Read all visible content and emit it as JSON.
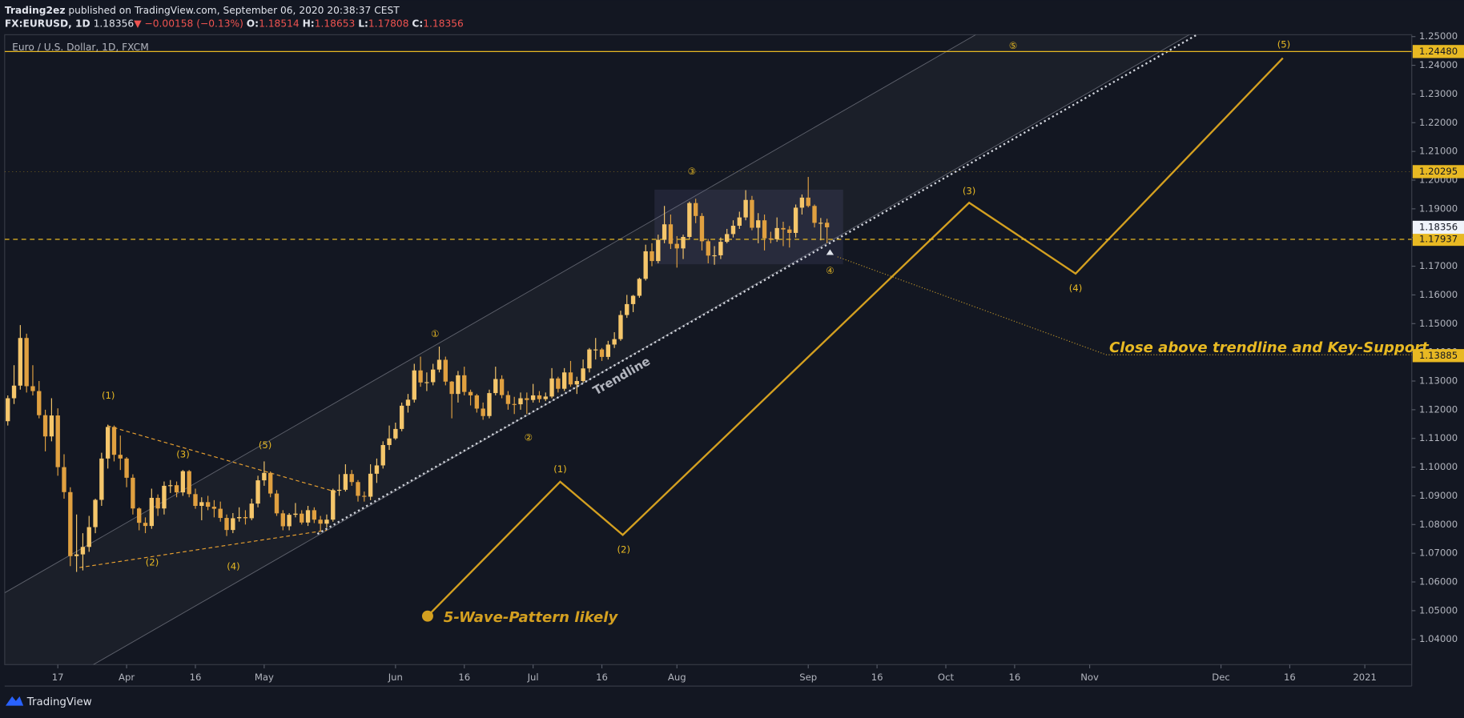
{
  "header": {
    "publisher": "Trading2ez",
    "published": "published on TradingView.com, September 06, 2020 20:38:37 CEST",
    "symbol": "FX:EURUSD, 1D",
    "change": "▼ −0.00158 (−0.13%)",
    "open_label": "O:",
    "high_label": "H:",
    "low_label": "L:",
    "close_label": "C:"
  },
  "pane_title": "Euro / U.S. Dollar, 1D, FXCM",
  "annotations": {
    "trendline": "Trendline",
    "note": "Close above trendline and Key-Support",
    "pattern": "5-Wave-Pattern likely",
    "waves": [
      "(1)",
      "(2)",
      "(3)",
      "(4)",
      "(5)",
      "①",
      "②",
      "③",
      "④",
      "⑤",
      "(1)",
      "(2)",
      "(3)",
      "(4)",
      "(5)"
    ]
  },
  "footer": "TradingView",
  "chart_data": {
    "type": "candlestick",
    "up_color": "#f5c66b",
    "down_color": "#e0a040",
    "open": [
      1.116,
      1.124,
      1.1284,
      1.145,
      1.1282,
      1.1265,
      1.1181,
      1.1107,
      1.118,
      1.1,
      1.0913,
      1.069,
      1.0696,
      1.0722,
      1.0791,
      1.0886,
      1.103,
      1.114,
      1.1043,
      1.103,
      1.0963,
      1.0856,
      1.0806,
      1.0795,
      1.0893,
      1.0856,
      1.0935,
      1.0937,
      1.0912,
      1.0986,
      1.0906,
      1.0865,
      1.0878,
      1.0862,
      1.0855,
      1.0823,
      1.0781,
      1.0822,
      1.0826,
      1.0822,
      1.0873,
      1.0954,
      1.098,
      1.0908,
      1.0839,
      1.0794,
      1.0834,
      1.0838,
      1.0807,
      1.085,
      1.0817,
      1.0803,
      1.0817,
      1.092,
      1.0921,
      1.0976,
      1.0948,
      1.09,
      1.0897,
      1.0977,
      1.1006,
      1.1077,
      1.11,
      1.1133,
      1.1214,
      1.1235,
      1.1337,
      1.1295,
      1.1296,
      1.134,
      1.1374,
      1.1298,
      1.1255,
      1.132,
      1.1262,
      1.125,
      1.1204,
      1.1178,
      1.1258,
      1.1307,
      1.1251,
      1.122,
      1.1219,
      1.124,
      1.1234,
      1.125,
      1.1237,
      1.1246,
      1.1309,
      1.1273,
      1.133,
      1.1288,
      1.13,
      1.1344,
      1.141,
      1.141,
      1.1384,
      1.1427,
      1.1446,
      1.153,
      1.1568,
      1.1597,
      1.1656,
      1.1752,
      1.1718,
      1.1792,
      1.1846,
      1.1778,
      1.1762,
      1.1802,
      1.192,
      1.1875,
      1.1787,
      1.1737,
      1.1738,
      1.1785,
      1.1812,
      1.1841,
      1.187,
      1.1931,
      1.1834,
      1.186,
      1.1797,
      1.1794,
      1.1833,
      1.1828,
      1.1816,
      1.1904,
      1.1939,
      1.191,
      1.1851,
      1.18514
    ],
    "high": [
      1.125,
      1.1355,
      1.1495,
      1.1465,
      1.1355,
      1.13,
      1.12,
      1.124,
      1.1205,
      1.1045,
      1.093,
      1.0835,
      1.077,
      1.083,
      1.089,
      1.105,
      1.1148,
      1.1145,
      1.111,
      1.1035,
      1.0975,
      1.086,
      1.0825,
      1.0925,
      1.0905,
      1.095,
      1.0955,
      1.095,
      1.099,
      1.099,
      1.0925,
      1.0895,
      1.09,
      1.0885,
      1.088,
      1.0835,
      1.084,
      1.086,
      1.085,
      1.089,
      1.097,
      1.102,
      1.0985,
      1.092,
      1.085,
      1.084,
      1.0875,
      1.085,
      1.0865,
      1.086,
      1.083,
      1.0835,
      1.0925,
      1.0975,
      1.101,
      1.099,
      1.0955,
      1.0915,
      1.101,
      1.103,
      1.109,
      1.1145,
      1.1155,
      1.1225,
      1.1255,
      1.136,
      1.1385,
      1.133,
      1.136,
      1.142,
      1.1385,
      1.13,
      1.1335,
      1.135,
      1.127,
      1.1255,
      1.1225,
      1.127,
      1.135,
      1.132,
      1.1265,
      1.1245,
      1.126,
      1.126,
      1.129,
      1.1265,
      1.126,
      1.1345,
      1.1315,
      1.1345,
      1.137,
      1.1315,
      1.1375,
      1.1415,
      1.145,
      1.1415,
      1.144,
      1.147,
      1.1545,
      1.16,
      1.16,
      1.166,
      1.1775,
      1.178,
      1.181,
      1.191,
      1.188,
      1.1805,
      1.181,
      1.1925,
      1.1935,
      1.1885,
      1.1795,
      1.177,
      1.18,
      1.183,
      1.186,
      1.189,
      1.1965,
      1.1945,
      1.1885,
      1.188,
      1.182,
      1.187,
      1.1855,
      1.184,
      1.1915,
      1.195,
      1.2011,
      1.1915,
      1.1868,
      1.18653
    ],
    "low": [
      1.1145,
      1.122,
      1.127,
      1.126,
      1.125,
      1.117,
      1.1055,
      1.109,
      1.097,
      1.089,
      1.0655,
      1.0635,
      1.064,
      1.0705,
      1.077,
      1.0865,
      1.0995,
      1.102,
      1.099,
      1.093,
      1.0835,
      1.078,
      1.077,
      1.0785,
      1.083,
      1.0835,
      1.091,
      1.0895,
      1.09,
      1.0895,
      1.0855,
      1.0815,
      1.085,
      1.0825,
      1.081,
      1.076,
      1.077,
      1.081,
      1.08,
      1.0815,
      1.086,
      1.0935,
      1.0895,
      1.083,
      1.078,
      1.078,
      1.0825,
      1.08,
      1.0795,
      1.0805,
      1.0775,
      1.079,
      1.081,
      1.09,
      1.0915,
      1.0935,
      1.088,
      1.088,
      1.0885,
      1.0945,
      1.0995,
      1.106,
      1.1095,
      1.1125,
      1.119,
      1.1225,
      1.128,
      1.1265,
      1.1285,
      1.133,
      1.1285,
      1.117,
      1.1225,
      1.125,
      1.1215,
      1.119,
      1.1165,
      1.117,
      1.125,
      1.124,
      1.12,
      1.1185,
      1.12,
      1.1185,
      1.1225,
      1.1225,
      1.123,
      1.124,
      1.126,
      1.1265,
      1.128,
      1.1255,
      1.1295,
      1.133,
      1.1375,
      1.137,
      1.1375,
      1.1415,
      1.144,
      1.152,
      1.154,
      1.159,
      1.165,
      1.17,
      1.171,
      1.178,
      1.176,
      1.1695,
      1.1725,
      1.1795,
      1.185,
      1.1755,
      1.171,
      1.1705,
      1.1725,
      1.178,
      1.18,
      1.183,
      1.186,
      1.1825,
      1.178,
      1.1755,
      1.178,
      1.1785,
      1.177,
      1.1765,
      1.18,
      1.188,
      1.1905,
      1.1835,
      1.179,
      1.17808
    ],
    "close": [
      1.124,
      1.1284,
      1.145,
      1.1282,
      1.1265,
      1.1181,
      1.1107,
      1.118,
      1.1,
      1.0913,
      1.069,
      1.0696,
      1.0722,
      1.0791,
      1.0886,
      1.103,
      1.114,
      1.1043,
      1.103,
      1.0963,
      1.0856,
      1.0806,
      1.0795,
      1.0893,
      1.0856,
      1.0935,
      1.0937,
      1.0912,
      1.0986,
      1.0906,
      1.0865,
      1.0878,
      1.0862,
      1.0855,
      1.0823,
      1.0781,
      1.0822,
      1.0826,
      1.0822,
      1.0873,
      1.0954,
      1.098,
      1.0908,
      1.0839,
      1.0794,
      1.0834,
      1.0838,
      1.0807,
      1.085,
      1.0817,
      1.0803,
      1.0817,
      1.092,
      1.0921,
      1.0976,
      1.0948,
      1.09,
      1.0897,
      1.0977,
      1.1006,
      1.1077,
      1.11,
      1.1133,
      1.1214,
      1.1235,
      1.1337,
      1.1295,
      1.1296,
      1.134,
      1.1374,
      1.1298,
      1.1255,
      1.132,
      1.1262,
      1.125,
      1.1204,
      1.1178,
      1.1258,
      1.1307,
      1.1251,
      1.122,
      1.1219,
      1.124,
      1.1234,
      1.125,
      1.1237,
      1.1246,
      1.1309,
      1.1273,
      1.133,
      1.1288,
      1.13,
      1.1344,
      1.141,
      1.141,
      1.1384,
      1.1427,
      1.1446,
      1.153,
      1.1568,
      1.1597,
      1.1656,
      1.1752,
      1.1718,
      1.1792,
      1.1846,
      1.1778,
      1.1762,
      1.1802,
      1.192,
      1.1875,
      1.1787,
      1.1737,
      1.1738,
      1.1785,
      1.1812,
      1.1841,
      1.187,
      1.1931,
      1.1834,
      1.186,
      1.1797,
      1.1794,
      1.1833,
      1.1828,
      1.1816,
      1.1904,
      1.1939,
      1.191,
      1.1851,
      1.18514,
      1.18356
    ],
    "xlim": [
      -0.5,
      224.5
    ],
    "xticks": [
      {
        "value": 8,
        "label": "17"
      },
      {
        "value": 19,
        "label": "Apr"
      },
      {
        "value": 30,
        "label": "16"
      },
      {
        "value": 41,
        "label": "May"
      },
      {
        "value": 62,
        "label": "Jun"
      },
      {
        "value": 73,
        "label": "16"
      },
      {
        "value": 84,
        "label": "Jul"
      },
      {
        "value": 95,
        "label": "16"
      },
      {
        "value": 107,
        "label": "Aug"
      },
      {
        "value": 128,
        "label": "Sep"
      },
      {
        "value": 139,
        "label": "16"
      },
      {
        "value": 150,
        "label": "Oct"
      },
      {
        "value": 161,
        "label": "16"
      },
      {
        "value": 173,
        "label": "Nov"
      },
      {
        "value": 194,
        "label": "Dec"
      },
      {
        "value": 205,
        "label": "16"
      },
      {
        "value": 217,
        "label": "2021"
      }
    ],
    "ylim": [
      1.0312,
      1.25
    ],
    "yticks": [
      {
        "value": 1.04,
        "label": "1.04000"
      },
      {
        "value": 1.05,
        "label": "1.05000"
      },
      {
        "value": 1.06,
        "label": "1.06000"
      },
      {
        "value": 1.07,
        "label": "1.07000"
      },
      {
        "value": 1.08,
        "label": "1.08000"
      },
      {
        "value": 1.09,
        "label": "1.09000"
      },
      {
        "value": 1.1,
        "label": "1.10000"
      },
      {
        "value": 1.11,
        "label": "1.11000"
      },
      {
        "value": 1.12,
        "label": "1.12000"
      },
      {
        "value": 1.13,
        "label": "1.13000"
      },
      {
        "value": 1.14,
        "label": "1.14000"
      },
      {
        "value": 1.15,
        "label": "1.15000"
      },
      {
        "value": 1.16,
        "label": "1.16000"
      },
      {
        "value": 1.17,
        "label": "1.17000"
      },
      {
        "value": 1.18,
        "label": "1.18000"
      },
      {
        "value": 1.19,
        "label": "1.19000"
      },
      {
        "value": 1.2,
        "label": "1.20000"
      },
      {
        "value": 1.21,
        "label": "1.21000"
      },
      {
        "value": 1.22,
        "label": "1.22000"
      },
      {
        "value": 1.23,
        "label": "1.23000"
      },
      {
        "value": 1.24,
        "label": "1.24000"
      },
      {
        "value": 1.25,
        "label": "1.25000"
      }
    ],
    "levels": [
      {
        "value": 1.2448,
        "label": "1.24480",
        "style": "solid"
      },
      {
        "value": 1.20295,
        "label": "1.20295",
        "style": "dotted"
      },
      {
        "value": 1.17937,
        "label": "1.17937",
        "style": "dashed"
      },
      {
        "value": 1.13885,
        "label": "1.13885",
        "style": "none"
      }
    ],
    "level_color": "#e8b923"
  }
}
